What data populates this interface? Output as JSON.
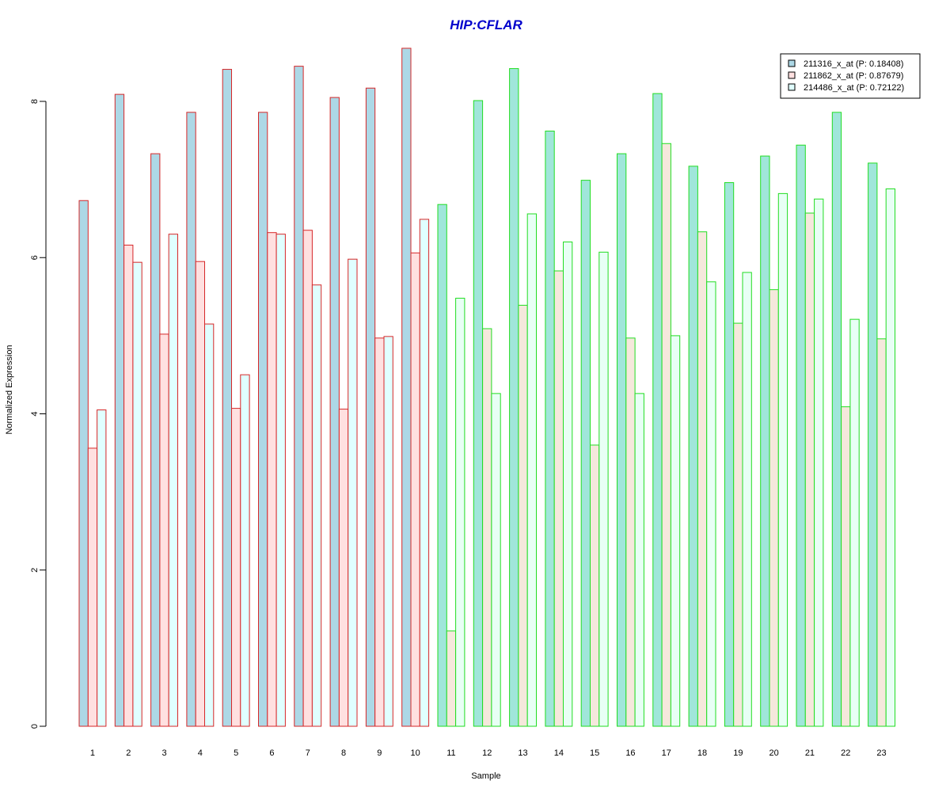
{
  "chart_data": {
    "type": "bar",
    "title": "HIP:CFLAR",
    "xlabel": "Sample",
    "ylabel": "Normalized Expression",
    "ylim": [
      0,
      8.7
    ],
    "yticks": [
      0,
      2,
      4,
      6,
      8
    ],
    "grid": false,
    "legend_position": "top-right",
    "categories": [
      "1",
      "2",
      "3",
      "4",
      "5",
      "6",
      "7",
      "8",
      "9",
      "10",
      "11",
      "12",
      "13",
      "14",
      "15",
      "16",
      "17",
      "18",
      "19",
      "20",
      "21",
      "22",
      "23"
    ],
    "groups": [
      {
        "name": "group-1",
        "samples": 10,
        "border_color": "#d62728",
        "fills": [
          "#add8e6",
          "#ffe0e0",
          "#e0ffff"
        ]
      },
      {
        "name": "group-2",
        "samples": 13,
        "border_color": "#22dd22",
        "fills": [
          "#a0e6da",
          "#f5e8dc",
          "#e8fff5"
        ]
      }
    ],
    "series": [
      {
        "name": "211316_x_at (P: 0.18408)",
        "legend_color": "#add8e6",
        "values": [
          6.73,
          8.09,
          7.33,
          7.86,
          8.41,
          7.86,
          8.45,
          8.05,
          8.17,
          8.68,
          6.68,
          8.01,
          8.42,
          7.62,
          6.99,
          7.33,
          8.1,
          7.17,
          6.96,
          7.3,
          7.44,
          7.86,
          7.21
        ]
      },
      {
        "name": "211862_x_at (P: 0.87679)",
        "legend_color": "#ffe0e0",
        "values": [
          3.56,
          6.16,
          5.02,
          5.95,
          4.07,
          6.32,
          6.35,
          4.06,
          4.97,
          6.06,
          1.22,
          5.09,
          5.39,
          5.83,
          3.6,
          4.97,
          7.46,
          6.33,
          5.16,
          5.59,
          6.57,
          4.09,
          4.96
        ]
      },
      {
        "name": "214486_x_at (P: 0.72122)",
        "legend_color": "#e0ffff",
        "values": [
          4.05,
          5.94,
          6.3,
          5.15,
          4.5,
          6.3,
          5.65,
          5.98,
          4.99,
          6.49,
          5.48,
          4.26,
          6.56,
          6.2,
          6.07,
          4.26,
          5.0,
          5.69,
          5.81,
          6.82,
          6.75,
          5.21,
          6.88
        ]
      }
    ],
    "colors": {
      "title": "#0000cc",
      "axis": "#000000"
    }
  }
}
